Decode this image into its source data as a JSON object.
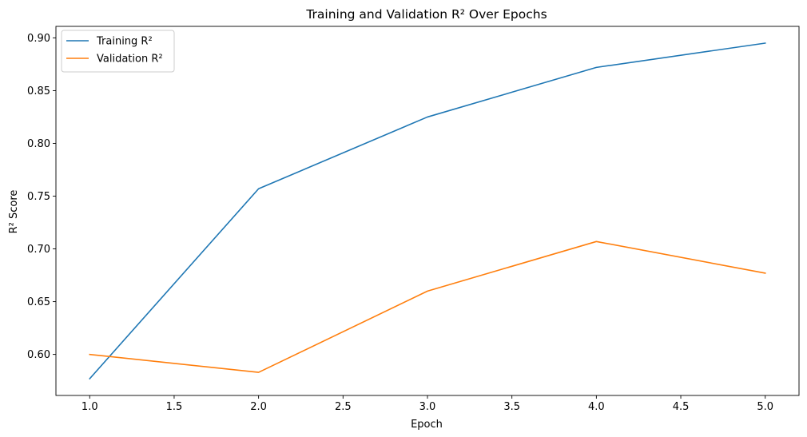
{
  "chart_data": {
    "type": "line",
    "title": "Training and Validation R² Over Epochs",
    "xlabel": "Epoch",
    "ylabel": "R² Score",
    "x": [
      1,
      2,
      3,
      4,
      5
    ],
    "series": [
      {
        "name": "Training R²",
        "color": "#1f77b4",
        "values": [
          0.577,
          0.757,
          0.825,
          0.872,
          0.895
        ]
      },
      {
        "name": "Validation R²",
        "color": "#ff7f0e",
        "values": [
          0.6,
          0.583,
          0.66,
          0.707,
          0.677
        ]
      }
    ],
    "xticks": [
      1.0,
      1.5,
      2.0,
      2.5,
      3.0,
      3.5,
      4.0,
      4.5,
      5.0
    ],
    "xtick_labels": [
      "1.0",
      "1.5",
      "2.0",
      "2.5",
      "3.0",
      "3.5",
      "4.0",
      "4.5",
      "5.0"
    ],
    "yticks": [
      0.6,
      0.65,
      0.7,
      0.75,
      0.8,
      0.85,
      0.9
    ],
    "ytick_labels": [
      "0.60",
      "0.65",
      "0.70",
      "0.75",
      "0.80",
      "0.85",
      "0.90"
    ],
    "xlim": [
      0.8,
      5.2
    ],
    "ylim": [
      0.5611,
      0.9109
    ],
    "grid": false,
    "legend_position": "upper-left"
  }
}
